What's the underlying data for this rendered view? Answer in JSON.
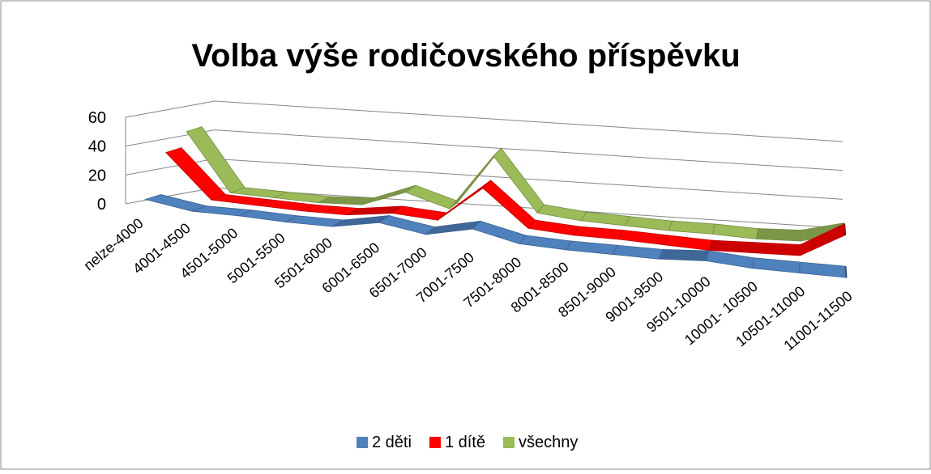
{
  "chart_data": {
    "type": "line3d",
    "title": "Volba výše rodičovského příspěvku",
    "categories": [
      "nelze-4000",
      "4001-4500",
      "4501-5000",
      "5001-5500",
      "5501-6000",
      "6001-6500",
      "6501-7000",
      "7001-7500",
      "7501-8000",
      "8001-8500",
      "8501-9000",
      "9001-9500",
      "9501-10000",
      "10001- 10500",
      "10501-11000",
      "11001-11500"
    ],
    "series": [
      {
        "name": "2 děti",
        "color": "#4f81bd",
        "values": [
          7,
          2,
          2,
          1,
          1,
          7,
          2,
          9,
          2,
          1,
          1,
          1,
          3,
          1,
          1,
          1
        ]
      },
      {
        "name": "1 dítě",
        "color": "#ff0000",
        "values": [
          35,
          5,
          4,
          3,
          3,
          7,
          5,
          30,
          5,
          3,
          3,
          2,
          1,
          2,
          3,
          20
        ]
      },
      {
        "name": "všechny",
        "color": "#9bbb59",
        "values": [
          45,
          5,
          4,
          3,
          4,
          15,
          6,
          45,
          8,
          5,
          4,
          3,
          3,
          2,
          3,
          10
        ]
      }
    ],
    "ylim": [
      0,
      60
    ],
    "yticks": [
      0,
      20,
      40,
      60
    ],
    "grid": true,
    "legend": "bottom"
  }
}
